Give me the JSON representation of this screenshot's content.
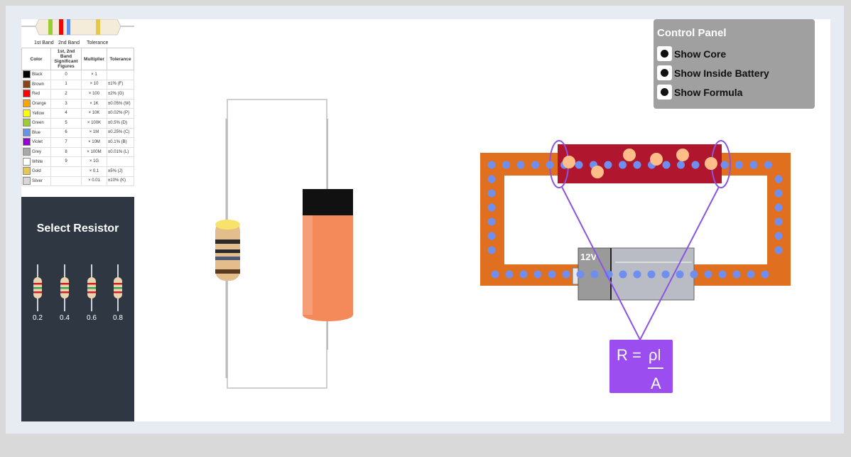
{
  "color_code": {
    "band_labels": {
      "first": "1st Band",
      "second": "2nd Band",
      "tolerance": "Tolerance"
    },
    "headers": {
      "color": "Color",
      "sig": "1st, 2nd Band Significant Figures",
      "multiplier": "Multiplier",
      "tolerance": "Tolerance"
    },
    "rows": [
      {
        "name": "Black",
        "swatch": "#000000",
        "digit": "0",
        "multiplier": "× 1",
        "tolerance": ""
      },
      {
        "name": "Brown",
        "swatch": "#8b4513",
        "digit": "1",
        "multiplier": "× 10",
        "tolerance": "±1% (F)"
      },
      {
        "name": "Red",
        "swatch": "#ff0000",
        "digit": "2",
        "multiplier": "× 100",
        "tolerance": "±2% (G)"
      },
      {
        "name": "Orange",
        "swatch": "#ffa500",
        "digit": "3",
        "multiplier": "× 1K",
        "tolerance": "±0.05% (W)"
      },
      {
        "name": "Yellow",
        "swatch": "#ffff00",
        "digit": "4",
        "multiplier": "× 10K",
        "tolerance": "±0.02% (P)"
      },
      {
        "name": "Green",
        "swatch": "#9acd32",
        "digit": "5",
        "multiplier": "× 100K",
        "tolerance": "±0.5% (D)"
      },
      {
        "name": "Blue",
        "swatch": "#6495ed",
        "digit": "6",
        "multiplier": "× 1M",
        "tolerance": "±0.25% (C)"
      },
      {
        "name": "Violet",
        "swatch": "#9400d3",
        "digit": "7",
        "multiplier": "× 10M",
        "tolerance": "±0.1% (B)"
      },
      {
        "name": "Grey",
        "swatch": "#a9a9a9",
        "digit": "8",
        "multiplier": "× 100M",
        "tolerance": "±0.01% (L)"
      },
      {
        "name": "White",
        "swatch": "#ffffff",
        "digit": "9",
        "multiplier": "× 1G",
        "tolerance": ""
      },
      {
        "name": "Gold",
        "swatch": "#e6c84a",
        "digit": "",
        "multiplier": "× 0.1",
        "tolerance": "±5% (J)"
      },
      {
        "name": "Silver",
        "swatch": "#d8d8d8",
        "digit": "",
        "multiplier": "× 0.01",
        "tolerance": "±10% (K)"
      }
    ]
  },
  "select_resistor": {
    "title": "Select Resistor",
    "options": [
      "0.2",
      "0.4",
      "0.6",
      "0.8"
    ]
  },
  "control_panel": {
    "title": "Control Panel",
    "options": [
      {
        "label": "Show Core"
      },
      {
        "label": "Show Inside Battery"
      },
      {
        "label": "Show Formula"
      }
    ]
  },
  "circuit": {
    "battery_label": "12V",
    "formula_lhs": "R = ",
    "formula_num": "ρl",
    "formula_den": "A"
  },
  "colors": {
    "wire": "#e07020",
    "resistor": "#b0162e",
    "electron": "#6f8ff0",
    "ion": "#ffbd8a",
    "formula_bg": "#9b4df0",
    "probe": "#8a56e0"
  }
}
